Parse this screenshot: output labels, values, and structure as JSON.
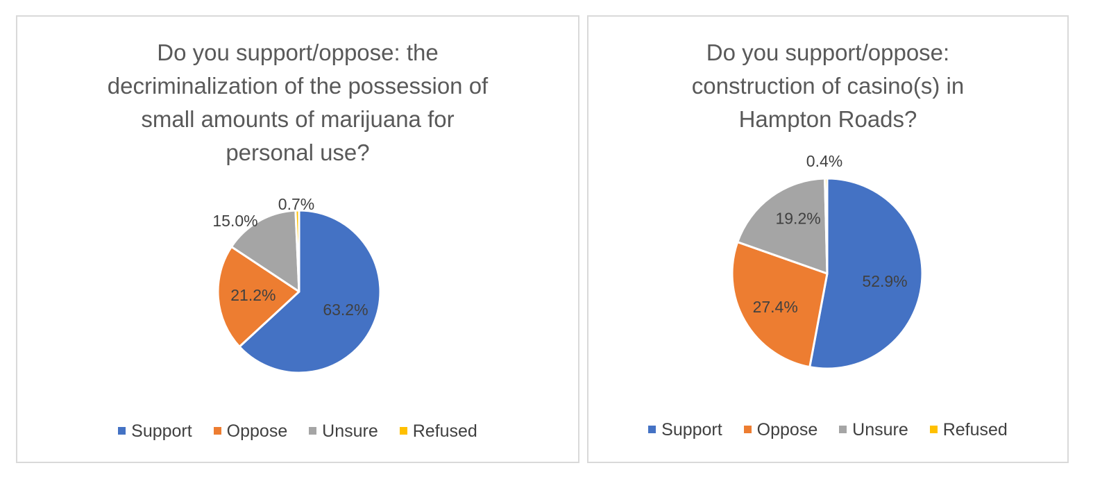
{
  "chart_data": [
    {
      "type": "pie",
      "title": "Do you support/oppose: the decriminalization of the possession of small amounts of marijuana for personal use?",
      "title_lines": [
        "Do you support/oppose: the",
        "decriminalization of the possession of",
        "small amounts of marijuana for",
        "personal use?"
      ],
      "categories": [
        "Support",
        "Oppose",
        "Unsure",
        "Refused"
      ],
      "values": [
        63.2,
        21.2,
        15.0,
        0.7
      ],
      "labels": [
        "63.2%",
        "21.2%",
        "15.0%",
        "0.7%"
      ],
      "colors": [
        "#4472c4",
        "#ed7d31",
        "#a5a5a5",
        "#ffc000"
      ],
      "legend": "bottom"
    },
    {
      "type": "pie",
      "title": "Do you support/oppose: construction of casino(s) in Hampton Roads?",
      "title_lines": [
        "Do you support/oppose:",
        "construction of casino(s) in",
        "Hampton Roads?"
      ],
      "categories": [
        "Support",
        "Oppose",
        "Unsure",
        "Refused"
      ],
      "values": [
        52.9,
        27.4,
        19.2,
        0.4
      ],
      "labels": [
        "52.9%",
        "27.4%",
        "19.2%",
        "0.4%"
      ],
      "colors": [
        "#4472c4",
        "#ed7d31",
        "#a5a5a5",
        "#ffc000"
      ],
      "legend": "bottom"
    }
  ]
}
